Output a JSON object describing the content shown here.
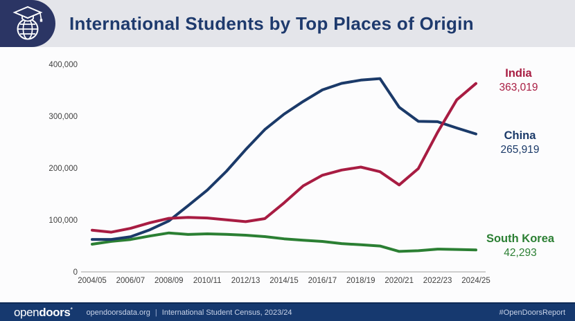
{
  "header": {
    "title": "International Students by Top Places of Origin",
    "logo_icon": "globe-graduation-cap-icon"
  },
  "chart_data": {
    "type": "line",
    "title": "International Students by Top Places of Origin",
    "xlabel": "",
    "ylabel": "",
    "ylim": [
      0,
      400000
    ],
    "grid": false,
    "legend_position": "right-end-labels",
    "categories": [
      "2004/05",
      "2005/06",
      "2006/07",
      "2007/08",
      "2008/09",
      "2009/10",
      "2010/11",
      "2011/12",
      "2012/13",
      "2013/14",
      "2014/15",
      "2015/16",
      "2016/17",
      "2017/18",
      "2018/19",
      "2019/20",
      "2020/21",
      "2021/22",
      "2022/23",
      "2023/24",
      "2024/25"
    ],
    "x_tick_labels": [
      "2004/05",
      "2006/07",
      "2008/09",
      "2010/11",
      "2012/13",
      "2014/15",
      "2016/17",
      "2018/19",
      "2020/21",
      "2022/23",
      "2024/25"
    ],
    "y_ticks": [
      0,
      100000,
      200000,
      300000,
      400000
    ],
    "y_tick_labels": [
      "0",
      "100,000",
      "200,000",
      "300,000",
      "400,000"
    ],
    "series": [
      {
        "name": "India",
        "color": "#a81c42",
        "end_label": "363,019",
        "values": [
          80466,
          76503,
          83833,
          94563,
          103260,
          104897,
          103895,
          100270,
          96754,
          102673,
          132888,
          165918,
          186267,
          196271,
          202014,
          193124,
          167582,
          199182,
          268923,
          331602,
          363019
        ]
      },
      {
        "name": "China",
        "color": "#1b3a69",
        "end_label": "265,919",
        "values": [
          62523,
          62582,
          67723,
          81127,
          98235,
          127628,
          157558,
          194029,
          235597,
          274439,
          304040,
          328547,
          350755,
          363341,
          369548,
          372532,
          317299,
          290086,
          289526,
          277398,
          265919
        ]
      },
      {
        "name": "South Korea",
        "color": "#2b7f33",
        "end_label": "42,293",
        "values": [
          53358,
          58847,
          62392,
          69124,
          75065,
          72153,
          73351,
          72295,
          70627,
          68047,
          63710,
          61007,
          58663,
          54555,
          52250,
          49809,
          39491,
          40755,
          43847,
          43149,
          42293
        ]
      }
    ]
  },
  "footer": {
    "logo_text_light": "open",
    "logo_text_bold": "doors",
    "logo_mark": "*",
    "site": "opendoorsdata.org",
    "divider": "|",
    "census": "International Student Census, 2023/24",
    "hashtag": "#OpenDoorsReport"
  },
  "colors": {
    "header_band": "#e4e5ea",
    "badge_navy": "#2b3564",
    "title_navy": "#1e3a6d",
    "footer_navy": "#16396f",
    "axis_text": "#3f3f3f"
  }
}
